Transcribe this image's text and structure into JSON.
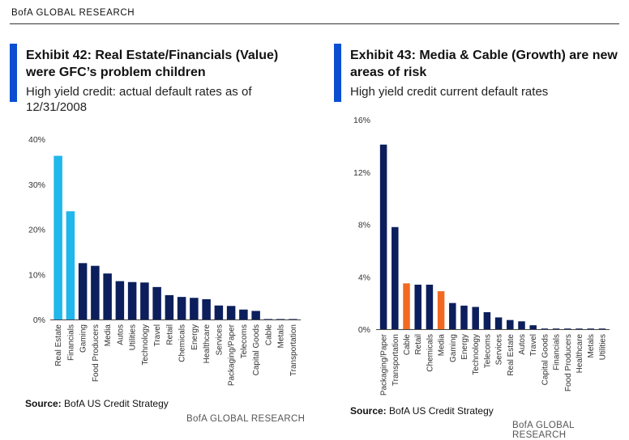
{
  "header": {
    "brand": "BofA GLOBAL RESEARCH"
  },
  "colors": {
    "accent": "#0a4fd1",
    "navy": "#0c1f5c",
    "light_blue": "#1fb7ec",
    "orange": "#f26a21"
  },
  "chart_data": [
    {
      "type": "bar",
      "title": "Exhibit 42: Real Estate/Financials (Value) were GFC’s problem children",
      "title_lines": [
        "Exhibit 42: Real Estate/Financials (Value)",
        "were GFC’s problem children"
      ],
      "subtitle": "High yield credit: actual default rates as of 12/31/2008",
      "subtitle_lines": [
        "High yield credit: actual default rates as of",
        "12/31/2008"
      ],
      "ylim": [
        0,
        40
      ],
      "yticks": [
        "0%",
        "10%",
        "20%",
        "30%",
        "40%"
      ],
      "categories": [
        "Real Estate",
        "Financials",
        "Gaming",
        "Food Producers",
        "Media",
        "Autos",
        "Utilities",
        "Technology",
        "Travel",
        "Retail",
        "Chemicals",
        "Energy",
        "Healthcare",
        "Services",
        "Packaging/Paper",
        "Telecoms",
        "Capital Goods",
        "Cable",
        "Metals",
        "Transportation"
      ],
      "values": [
        36.3,
        24.0,
        12.5,
        11.9,
        10.2,
        8.5,
        8.3,
        8.2,
        7.2,
        5.4,
        5.0,
        4.8,
        4.5,
        3.1,
        3.0,
        2.2,
        1.9,
        0.1,
        0.1,
        0.1
      ],
      "bar_colors": [
        "light_blue",
        "light_blue",
        "navy",
        "navy",
        "navy",
        "navy",
        "navy",
        "navy",
        "navy",
        "navy",
        "navy",
        "navy",
        "navy",
        "navy",
        "navy",
        "navy",
        "navy",
        "navy",
        "navy",
        "navy"
      ],
      "source_label": "Source:",
      "source_text": " BofA US Credit Strategy",
      "brand": "BofA GLOBAL RESEARCH"
    },
    {
      "type": "bar",
      "title": "Exhibit 43: Media & Cable (Growth) are new areas of risk",
      "title_lines": [
        "Exhibit 43: Media & Cable (Growth) are new",
        "areas of risk"
      ],
      "subtitle": "High yield credit current default rates",
      "subtitle_lines": [
        "High yield credit current default rates"
      ],
      "ylim": [
        0,
        16
      ],
      "yticks": [
        "0%",
        "4%",
        "8%",
        "12%",
        "16%"
      ],
      "categories": [
        "Packaging/Paper",
        "Transportation",
        "Cable",
        "Retail",
        "Chemicals",
        "Media",
        "Gaming",
        "Energy",
        "Technology",
        "Telecoms",
        "Services",
        "Real Estate",
        "Autos",
        "Travel",
        "Capital Goods",
        "Financials",
        "Food Producers",
        "Healthcare",
        "Metals",
        "Utilities"
      ],
      "values": [
        14.1,
        7.8,
        3.5,
        3.4,
        3.4,
        2.9,
        2.0,
        1.8,
        1.7,
        1.3,
        0.9,
        0.7,
        0.6,
        0.3,
        0.05,
        0.05,
        0.05,
        0.05,
        0.05,
        0.05
      ],
      "bar_colors": [
        "navy",
        "navy",
        "orange",
        "navy",
        "navy",
        "orange",
        "navy",
        "navy",
        "navy",
        "navy",
        "navy",
        "navy",
        "navy",
        "navy",
        "navy",
        "navy",
        "navy",
        "navy",
        "navy",
        "navy"
      ],
      "source_label": "Source:",
      "source_text": " BofA US Credit Strategy",
      "brand": "BofA GLOBAL RESEARCH"
    }
  ]
}
